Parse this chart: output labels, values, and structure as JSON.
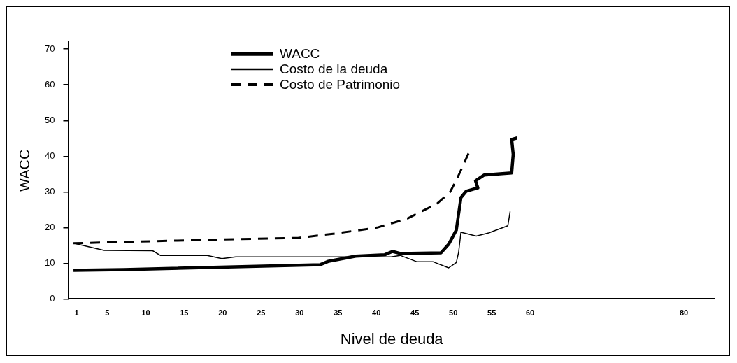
{
  "chart_data": {
    "type": "line",
    "xlabel": "Nivel de deuda",
    "ylabel": "WACC",
    "xlim": [
      0,
      84
    ],
    "xticks": [
      1,
      5,
      10,
      15,
      20,
      25,
      30,
      35,
      40,
      45,
      50,
      55,
      60,
      80
    ],
    "ylim": [
      0,
      72
    ],
    "yticks": [
      0,
      10,
      20,
      30,
      40,
      50,
      60,
      70
    ],
    "grid": false,
    "legend": "top left",
    "marker": "none",
    "series": [
      {
        "name": "WACC",
        "color": "#000000",
        "line_style": "solid",
        "x": [
          0.6,
          7.1,
          32.7,
          33.7,
          37.3,
          41.1,
          42.1,
          43.2,
          48.4,
          49.4,
          50.4,
          51,
          51.7,
          53.2,
          52.9,
          54,
          57.6,
          57.8,
          57.6,
          58.3
        ],
        "values": [
          8,
          8.2,
          9.6,
          10.5,
          12,
          12.4,
          13.3,
          12.7,
          12.9,
          15.3,
          19.3,
          28.4,
          30.2,
          31.1,
          33.1,
          34.7,
          35.3,
          40.5,
          44.7,
          45.1
        ]
      },
      {
        "name": "Costo de la deuda",
        "color": "#000000",
        "line_style": "solid",
        "x": [
          0.6,
          4.6,
          10.9,
          11.9,
          18,
          19.9,
          21.7,
          29.8,
          41.9,
          43.1,
          45.3,
          47.4,
          49.4,
          50.4,
          50.7,
          51,
          53,
          54.6,
          57.1,
          57.4
        ],
        "values": [
          15.6,
          13.6,
          13.5,
          12.2,
          12.2,
          11.3,
          11.8,
          11.8,
          11.8,
          12.2,
          10.4,
          10.4,
          8.7,
          10.2,
          13.1,
          18.7,
          17.6,
          18.5,
          20.5,
          24.5
        ]
      },
      {
        "name": "Costo de Patrimonio",
        "color": "#000000",
        "line_style": "dashed",
        "x": [
          0.6,
          15.1,
          22.4,
          29.8,
          34.9,
          40.1,
          44,
          47.9,
          49.6,
          50.4,
          51.2,
          52.1
        ],
        "values": [
          15.6,
          16.4,
          16.8,
          17.1,
          18.4,
          20,
          22.5,
          26.7,
          30,
          33.3,
          37,
          41.3
        ]
      }
    ]
  }
}
